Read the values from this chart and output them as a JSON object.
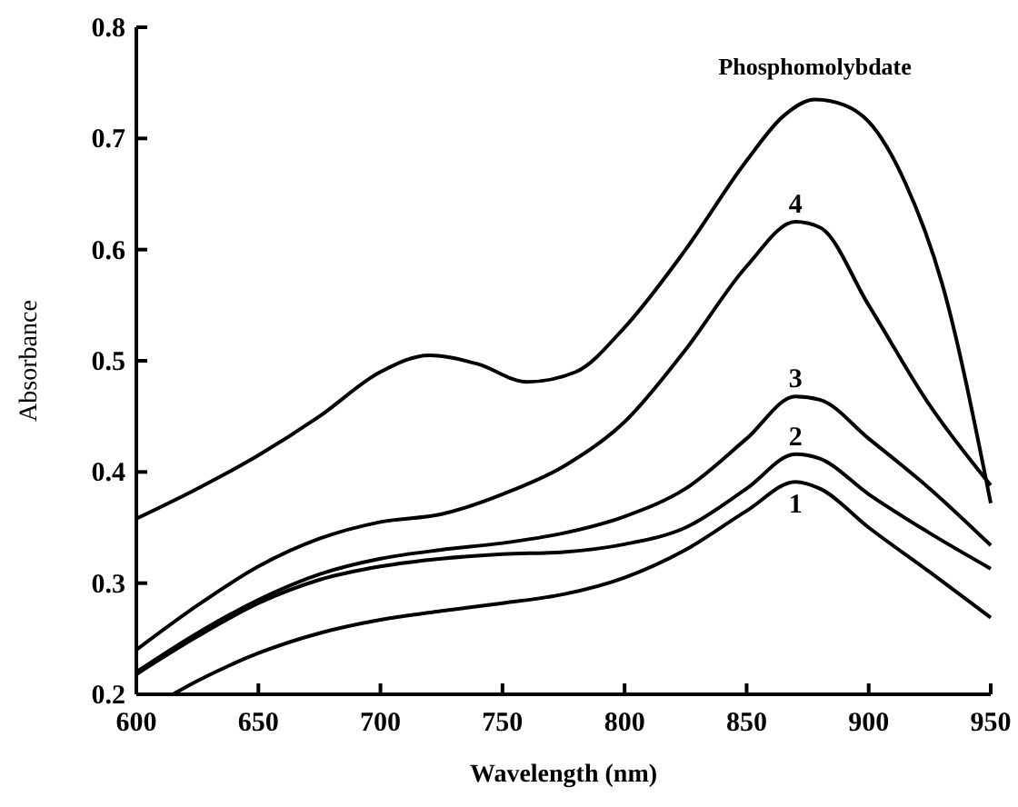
{
  "chart_data": {
    "type": "line",
    "xlabel": "Wavelength (nm)",
    "ylabel": "Absorbance",
    "xlim": [
      600,
      950
    ],
    "ylim": [
      0.2,
      0.8
    ],
    "xticks": [
      600,
      650,
      700,
      750,
      800,
      850,
      900,
      950
    ],
    "yticks": [
      0.2,
      0.3,
      0.4,
      0.5,
      0.6,
      0.7,
      0.8
    ],
    "grid": false,
    "marker": "none",
    "line_style": "solid",
    "series": [
      {
        "name": "1",
        "color": "#000000",
        "x": [
          615,
          625,
          650,
          675,
          700,
          725,
          750,
          775,
          800,
          825,
          850,
          870,
          880,
          900,
          925,
          950
        ],
        "values": [
          0.2,
          0.212,
          0.237,
          0.255,
          0.267,
          0.275,
          0.282,
          0.29,
          0.305,
          0.33,
          0.365,
          0.391,
          0.385,
          0.35,
          0.31,
          0.269
        ]
      },
      {
        "name": "2",
        "color": "#000000",
        "x": [
          600,
          625,
          650,
          675,
          700,
          725,
          750,
          775,
          800,
          825,
          850,
          870,
          880,
          900,
          925,
          950
        ],
        "values": [
          0.218,
          0.252,
          0.282,
          0.303,
          0.315,
          0.322,
          0.326,
          0.328,
          0.335,
          0.35,
          0.385,
          0.416,
          0.412,
          0.38,
          0.345,
          0.313
        ]
      },
      {
        "name": "3",
        "color": "#000000",
        "x": [
          600,
          625,
          650,
          675,
          700,
          725,
          750,
          775,
          800,
          825,
          850,
          870,
          880,
          900,
          925,
          950
        ],
        "values": [
          0.22,
          0.255,
          0.285,
          0.308,
          0.322,
          0.33,
          0.336,
          0.345,
          0.36,
          0.385,
          0.43,
          0.468,
          0.465,
          0.43,
          0.385,
          0.334
        ]
      },
      {
        "name": "4",
        "color": "#000000",
        "x": [
          600,
          625,
          650,
          675,
          700,
          725,
          750,
          775,
          800,
          825,
          850,
          870,
          880,
          900,
          925,
          950
        ],
        "values": [
          0.24,
          0.28,
          0.315,
          0.34,
          0.355,
          0.362,
          0.38,
          0.405,
          0.445,
          0.51,
          0.585,
          0.625,
          0.62,
          0.55,
          0.46,
          0.388
        ]
      },
      {
        "name": "Phosphomolybdate",
        "color": "#000000",
        "x": [
          600,
          625,
          650,
          675,
          700,
          720,
          740,
          760,
          780,
          800,
          825,
          850,
          865,
          878,
          890,
          900,
          915,
          930,
          950
        ],
        "values": [
          0.358,
          0.385,
          0.415,
          0.45,
          0.49,
          0.505,
          0.497,
          0.481,
          0.49,
          0.53,
          0.6,
          0.68,
          0.72,
          0.735,
          0.73,
          0.715,
          0.66,
          0.57,
          0.372
        ]
      }
    ]
  }
}
